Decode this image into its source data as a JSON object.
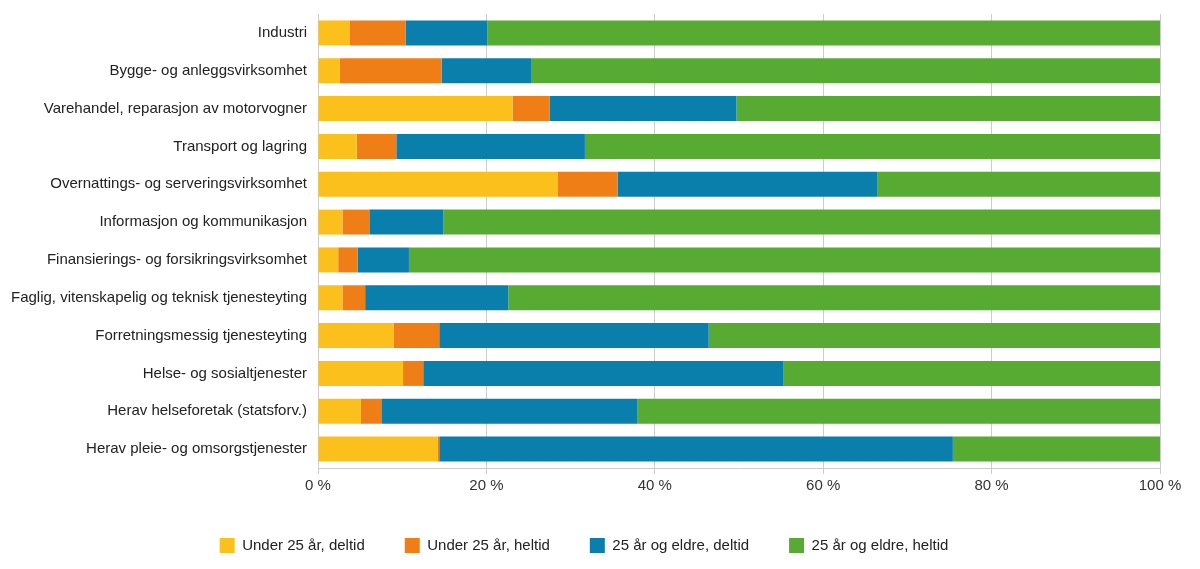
{
  "chart_data": {
    "type": "bar",
    "orientation": "horizontal",
    "stacked": true,
    "grid": true,
    "legend": "bottom",
    "categories": [
      "Industri",
      "Bygge- og anleggsvirksomhet",
      "Varehandel, reparasjon av motorvogner",
      "Transport og lagring",
      "Overnattings- og serveringsvirksomhet",
      "Informasjon og kommunikasjon",
      "Finansierings- og forsikringsvirksomhet",
      "Faglig, vitenskapelig og teknisk tjenesteyting",
      "Forretningsmessig tjenesteyting",
      "Helse- og sosialtjenester",
      "Herav helseforetak (statsforv.)",
      "Herav pleie- og omsorgstjenester"
    ],
    "series": [
      {
        "name": "Under 25 år, deltid",
        "color": "#fcc01c",
        "values": [
          3.8,
          2.6,
          23.1,
          4.6,
          28.5,
          2.9,
          2.4,
          2.9,
          9.0,
          10.1,
          5.1,
          14.2
        ]
      },
      {
        "name": "Under 25 år, heltid",
        "color": "#f07e16",
        "values": [
          6.6,
          12.1,
          4.4,
          4.7,
          7.1,
          3.2,
          2.3,
          2.7,
          5.4,
          2.4,
          2.5,
          0.2
        ]
      },
      {
        "name": "25 år og eldre, deltid",
        "color": "#0a7fab",
        "values": [
          9.7,
          10.6,
          22.2,
          22.4,
          30.8,
          8.8,
          6.1,
          17.0,
          32.0,
          42.8,
          30.3,
          61.0
        ]
      },
      {
        "name": "25 år og eldre, heltid",
        "color": "#57aa32",
        "values": [
          79.9,
          74.7,
          50.3,
          68.3,
          33.6,
          85.1,
          89.2,
          77.4,
          53.6,
          44.7,
          62.1,
          24.6
        ]
      }
    ],
    "xlim": [
      0,
      100
    ],
    "xticks": [
      {
        "value": 0,
        "label": "0 %"
      },
      {
        "value": 20,
        "label": "20 %"
      },
      {
        "value": 40,
        "label": "40 %"
      },
      {
        "value": 60,
        "label": "60 %"
      },
      {
        "value": 80,
        "label": "80 %"
      },
      {
        "value": 100,
        "label": "100 %"
      }
    ]
  }
}
